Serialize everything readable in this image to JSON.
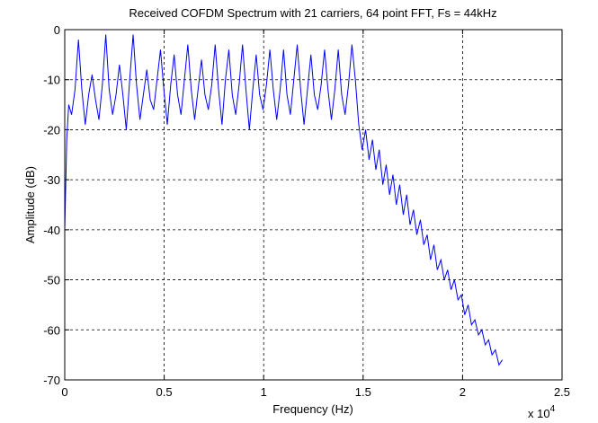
{
  "chart_data": {
    "type": "line",
    "title": "Received COFDM Spectrum with 21 carriers, 64 point FFT, Fs = 44kHz",
    "xlabel": "Frequency (Hz)",
    "ylabel": "Amplitude (dB)",
    "x_multiplier": {
      "base": "x 10",
      "exponent": "4"
    },
    "color": "#0000ff",
    "grid": true,
    "xlim": [
      0,
      25000
    ],
    "xticks": [
      0,
      {
        "value": 5000,
        "label": "0.5"
      },
      {
        "value": 10000,
        "label": "1"
      },
      {
        "value": 15000,
        "label": "1.5"
      },
      {
        "value": 20000,
        "label": "2"
      },
      {
        "value": 25000,
        "label": "2.5"
      }
    ],
    "ylim": [
      -70,
      0
    ],
    "yticks": [
      -70,
      -60,
      -50,
      -40,
      -30,
      -20,
      -10,
      0
    ],
    "x": [
      0,
      100,
      200,
      344,
      516,
      688,
      859,
      1031,
      1203,
      1375,
      1547,
      1719,
      1891,
      2063,
      2234,
      2406,
      2578,
      2750,
      2922,
      3094,
      3266,
      3438,
      3609,
      3781,
      3953,
      4125,
      4297,
      4469,
      4641,
      4813,
      4984,
      5156,
      5328,
      5500,
      5672,
      5844,
      6016,
      6188,
      6359,
      6531,
      6703,
      6875,
      7047,
      7219,
      7391,
      7563,
      7734,
      7906,
      8078,
      8250,
      8422,
      8594,
      8766,
      8938,
      9109,
      9281,
      9453,
      9625,
      9797,
      9969,
      10141,
      10313,
      10484,
      10656,
      10828,
      11000,
      11172,
      11344,
      11516,
      11688,
      11859,
      12031,
      12203,
      12375,
      12547,
      12719,
      12891,
      13063,
      13234,
      13406,
      13578,
      13750,
      13922,
      14094,
      14266,
      14438,
      14609,
      14781,
      14950,
      15125,
      15300,
      15470,
      15640,
      15810,
      15990,
      16160,
      16330,
      16500,
      16670,
      16840,
      17020,
      17190,
      17360,
      17530,
      17700,
      17880,
      18050,
      18220,
      18390,
      18560,
      18730,
      18910,
      19080,
      19250,
      19420,
      19590,
      19770,
      19940,
      20110,
      20280,
      20450,
      20620,
      20800,
      20970,
      21140,
      21310,
      21480,
      21650,
      21830,
      22000
    ],
    "values": [
      -40,
      -22,
      -15,
      -17,
      -12,
      -2,
      -12,
      -19,
      -13,
      -9,
      -14,
      -18,
      -11,
      -1,
      -12,
      -17,
      -13,
      -7,
      -13,
      -20,
      -10,
      -1,
      -11,
      -18,
      -13,
      -8,
      -14,
      -16,
      -10,
      -4,
      -12,
      -19,
      -11,
      -5,
      -13,
      -17,
      -10,
      -3,
      -12,
      -18,
      -12,
      -6,
      -13,
      -16,
      -11,
      -3,
      -12,
      -19,
      -10,
      -4,
      -13,
      -17,
      -11,
      -3,
      -12,
      -20,
      -12,
      -5,
      -13,
      -16,
      -11,
      -4,
      -12,
      -18,
      -12,
      -4,
      -13,
      -17,
      -10,
      -3,
      -12,
      -19,
      -12,
      -5,
      -13,
      -16,
      -11,
      -4,
      -12,
      -18,
      -12,
      -4,
      -13,
      -17,
      -11,
      -3,
      -10,
      -19,
      -24,
      -20,
      -26,
      -22,
      -28,
      -24,
      -31,
      -27,
      -33,
      -29,
      -35,
      -31,
      -37,
      -33,
      -39,
      -36,
      -41,
      -38,
      -43,
      -41,
      -46,
      -43,
      -48,
      -46,
      -50,
      -48,
      -52,
      -50,
      -54,
      -53,
      -57,
      -55,
      -59,
      -58,
      -61,
      -60,
      -63,
      -62,
      -65,
      -64,
      -67,
      -66
    ]
  }
}
